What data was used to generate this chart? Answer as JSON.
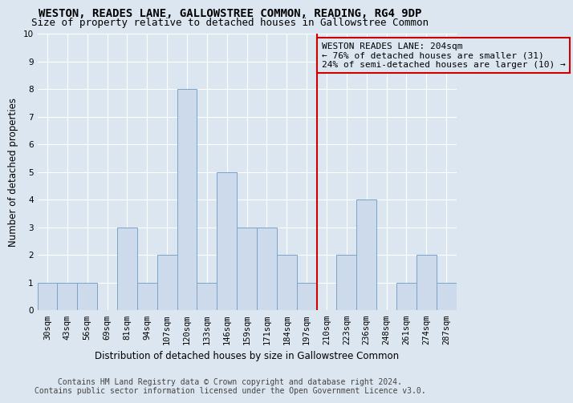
{
  "title": "WESTON, READES LANE, GALLOWSTREE COMMON, READING, RG4 9DP",
  "subtitle": "Size of property relative to detached houses in Gallowstree Common",
  "xlabel": "Distribution of detached houses by size in Gallowstree Common",
  "ylabel": "Number of detached properties",
  "footer_line1": "Contains HM Land Registry data © Crown copyright and database right 2024.",
  "footer_line2": "Contains public sector information licensed under the Open Government Licence v3.0.",
  "categories": [
    "30sqm",
    "43sqm",
    "56sqm",
    "69sqm",
    "81sqm",
    "94sqm",
    "107sqm",
    "120sqm",
    "133sqm",
    "146sqm",
    "159sqm",
    "171sqm",
    "184sqm",
    "197sqm",
    "210sqm",
    "223sqm",
    "236sqm",
    "248sqm",
    "261sqm",
    "274sqm",
    "287sqm"
  ],
  "values": [
    1,
    1,
    1,
    0,
    3,
    1,
    2,
    8,
    1,
    5,
    3,
    3,
    2,
    1,
    0,
    2,
    4,
    0,
    1,
    2,
    1
  ],
  "bar_color": "#ccdaeb",
  "bar_edge_color": "#7ba3c8",
  "background_color": "#dce6f0",
  "grid_color": "#ffffff",
  "ylim": [
    0,
    10
  ],
  "yticks": [
    0,
    1,
    2,
    3,
    4,
    5,
    6,
    7,
    8,
    9,
    10
  ],
  "vline_x_index": 13.5,
  "vline_color": "#cc0000",
  "annotation_title": "WESTON READES LANE: 204sqm",
  "annotation_line2": "← 76% of detached houses are smaller (31)",
  "annotation_line3": "24% of semi-detached houses are larger (10) →",
  "annotation_box_color": "#cc0000",
  "title_fontsize": 10,
  "subtitle_fontsize": 9,
  "xlabel_fontsize": 8.5,
  "ylabel_fontsize": 8.5,
  "tick_fontsize": 7.5,
  "annotation_fontsize": 8,
  "footer_fontsize": 7
}
